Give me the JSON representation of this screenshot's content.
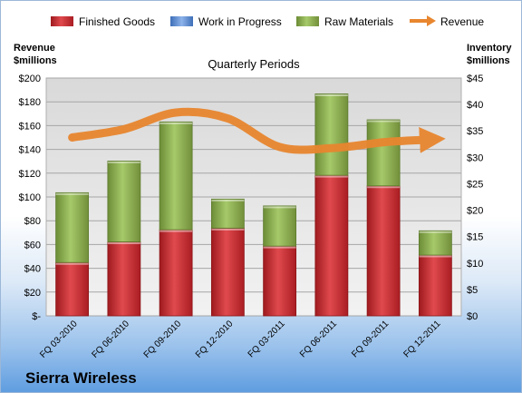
{
  "company": "Sierra Wireless",
  "chart_data": {
    "type": "bar",
    "subtype": "stacked bar with line overlay",
    "title": "Quarterly Periods",
    "categories": [
      "FQ 03-2010",
      "FQ 06-2010",
      "FQ 09-2010",
      "FQ 12-2010",
      "FQ 03-2011",
      "FQ 06-2011",
      "FQ 09-2011",
      "FQ 12-2011"
    ],
    "left_axis": {
      "label_line1": "Revenue",
      "label_line2": "$millions",
      "ylim": [
        0,
        200
      ],
      "ticks": [
        0,
        20,
        40,
        60,
        80,
        100,
        120,
        140,
        160,
        180,
        200
      ],
      "tick_labels": [
        "$-",
        "$20",
        "$40",
        "$60",
        "$80",
        "$100",
        "$120",
        "$140",
        "$160",
        "$180",
        "$200"
      ]
    },
    "right_axis": {
      "label_line1": "Inventory",
      "label_line2": "$millions",
      "ylim": [
        0,
        45
      ],
      "ticks": [
        0,
        5,
        10,
        15,
        20,
        25,
        30,
        35,
        40,
        45
      ],
      "tick_labels": [
        "$0",
        "$5",
        "$10",
        "$15",
        "$20",
        "$25",
        "$30",
        "$35",
        "$40",
        "$45"
      ]
    },
    "series": [
      {
        "name": "Finished Goods",
        "axis": "right",
        "color": "#c0262b",
        "values": [
          10.1,
          14.0,
          16.3,
          16.6,
          13.2,
          26.6,
          24.6,
          11.5
        ]
      },
      {
        "name": "Work in Progress",
        "axis": "right",
        "color": "#5a8ad3",
        "values": [
          0,
          0,
          0,
          0,
          0,
          0,
          0,
          0
        ]
      },
      {
        "name": "Raw Materials",
        "axis": "right",
        "color": "#8db04f",
        "values": [
          13.2,
          15.3,
          20.4,
          5.5,
          7.6,
          15.4,
          12.5,
          4.6
        ]
      },
      {
        "name": "Revenue",
        "axis": "left",
        "color": "#e8862f",
        "type": "line",
        "values": [
          150,
          157,
          171,
          166,
          142,
          141,
          146,
          148
        ]
      }
    ],
    "grid": true,
    "legend": "top"
  }
}
